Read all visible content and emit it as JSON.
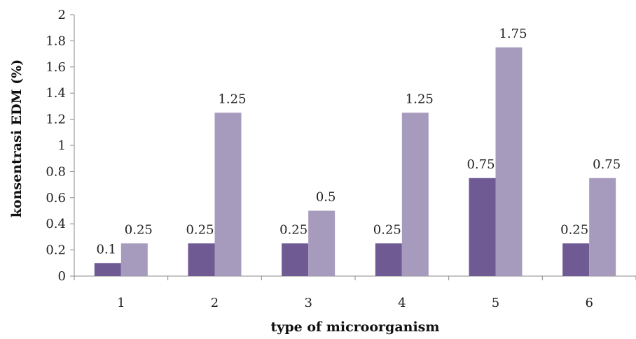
{
  "chart_data": {
    "type": "bar",
    "title": "",
    "xlabel": "type of microorganism",
    "ylabel": "konsentrasi EDM (%)",
    "ylim": [
      0,
      2
    ],
    "yticks": [
      "0",
      "0.2",
      "0.4",
      "0.6",
      "0.8",
      "1",
      "1.2",
      "1.4",
      "1.6",
      "1.8",
      "2"
    ],
    "categories": [
      "1",
      "2",
      "3",
      "4",
      "5",
      "6"
    ],
    "series": [
      {
        "values": [
          0.1,
          0.25,
          0.25,
          0.25,
          0.75,
          0.25
        ],
        "labels": [
          "0.1",
          "0.25",
          "0.25",
          "0.25",
          "0.75",
          "0.25"
        ],
        "color": "#6f5a94"
      },
      {
        "values": [
          0.25,
          1.25,
          0.5,
          1.25,
          1.75,
          0.75
        ],
        "labels": [
          "0.25",
          "1.25",
          "0.5",
          "1.25",
          "1.75",
          "0.75"
        ],
        "color": "#a79bbd"
      }
    ],
    "grid": false,
    "legend": "none"
  }
}
